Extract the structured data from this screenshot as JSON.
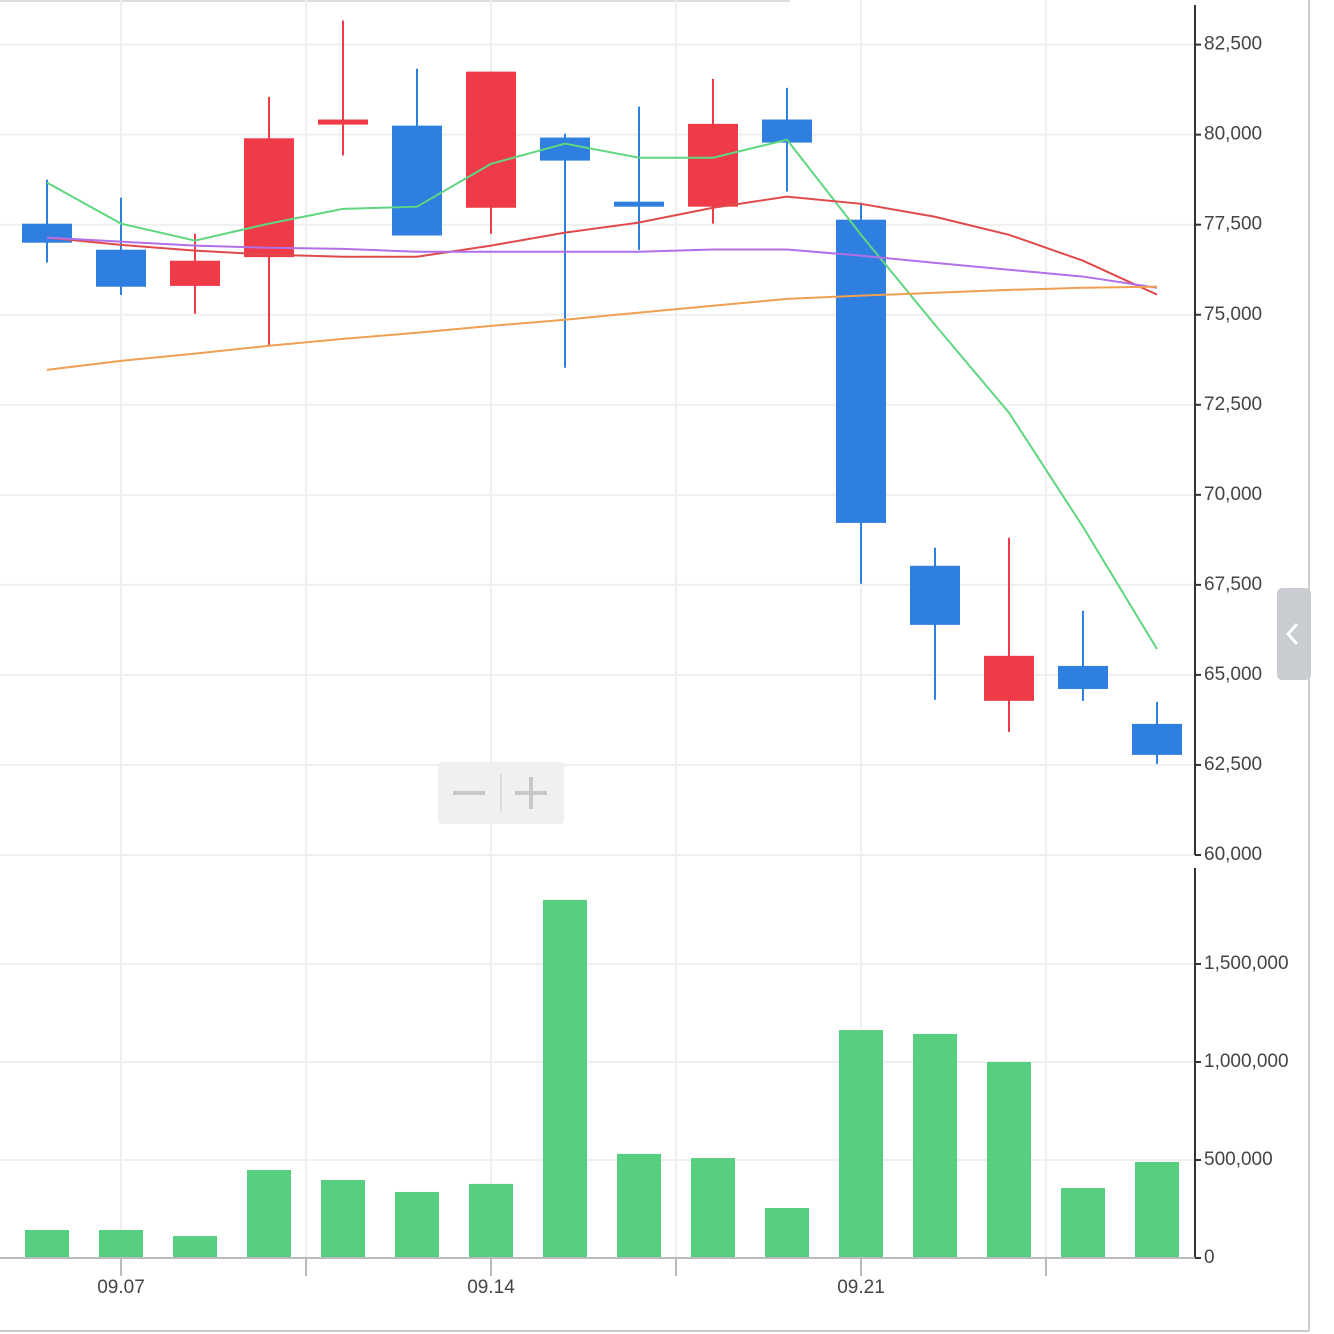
{
  "chart_data": [
    {
      "type": "candlestick",
      "open": [
        77528,
        76806,
        75800,
        76600,
        80280,
        80250,
        77970,
        79920,
        78140,
        78000,
        80420,
        77640,
        68030,
        64280,
        65250,
        63640
      ],
      "high": [
        78750,
        78250,
        77250,
        81050,
        83170,
        81830,
        81750,
        80030,
        80780,
        81550,
        81300,
        78110,
        68530,
        68810,
        66780,
        64250
      ],
      "low": [
        76450,
        75550,
        75030,
        74150,
        79420,
        77200,
        77250,
        73530,
        76800,
        77530,
        78420,
        67530,
        64310,
        63420,
        64280,
        62530
      ],
      "close": [
        77000,
        75778,
        76500,
        79900,
        80420,
        77200,
        81750,
        79280,
        78000,
        80300,
        79780,
        69220,
        66390,
        65530,
        64610,
        62780
      ],
      "up_color": "#ef3a48",
      "down_color": "#2e7fe0",
      "lines": [
        {
          "color": "#5fd67f",
          "values": [
            78670,
            77530,
            77060,
            77530,
            77940,
            78000,
            79190,
            79750,
            79360,
            79360,
            79860,
            77220,
            74720,
            72280,
            69110,
            65720
          ]
        },
        {
          "color": "#e04a4a",
          "values": [
            77140,
            76940,
            76780,
            76670,
            76610,
            76610,
            76920,
            77280,
            77560,
            77970,
            78280,
            78080,
            77720,
            77220,
            76500,
            75560
          ]
        },
        {
          "color": "#b16fe8",
          "values": [
            77140,
            77030,
            76920,
            76860,
            76830,
            76750,
            76750,
            76750,
            76750,
            76810,
            76810,
            76640,
            76440,
            76250,
            76060,
            75750
          ]
        },
        {
          "color": "#f0a052",
          "values": [
            73470,
            73720,
            73920,
            74140,
            74330,
            74500,
            74690,
            74860,
            75060,
            75250,
            75440,
            75530,
            75610,
            75690,
            75750,
            75780
          ]
        }
      ],
      "ylim": [
        60000,
        83600
      ],
      "yticks": [
        {
          "value": 60000,
          "label": "60,000"
        },
        {
          "value": 62500,
          "label": "62,500"
        },
        {
          "value": 65000,
          "label": "65,000"
        },
        {
          "value": 67500,
          "label": "67,500"
        },
        {
          "value": 70000,
          "label": "70,000"
        },
        {
          "value": 72500,
          "label": "72,500"
        },
        {
          "value": 75000,
          "label": "75,000"
        },
        {
          "value": 77500,
          "label": "77,500"
        },
        {
          "value": 80000,
          "label": "80,000"
        },
        {
          "value": 82500,
          "label": "82,500"
        }
      ],
      "grid": true
    },
    {
      "type": "bar",
      "categories": [
        null,
        "09.07",
        null,
        null,
        null,
        null,
        "09.14",
        null,
        null,
        null,
        null,
        "09.21",
        null,
        null,
        null,
        null
      ],
      "values": [
        143000,
        143000,
        112000,
        449000,
        398000,
        337000,
        378000,
        1827000,
        531000,
        510000,
        255000,
        1163000,
        1143000,
        1000000,
        357000,
        490000
      ],
      "color": "#58cf80",
      "ylim": [
        0,
        2005000
      ],
      "yticks": [
        0,
        {
          "value": 500000,
          "label": "500,000"
        },
        {
          "value": 1000000,
          "label": "1,000,000"
        },
        {
          "value": 1500000,
          "label": "1,500,000"
        }
      ],
      "grid": true
    }
  ]
}
